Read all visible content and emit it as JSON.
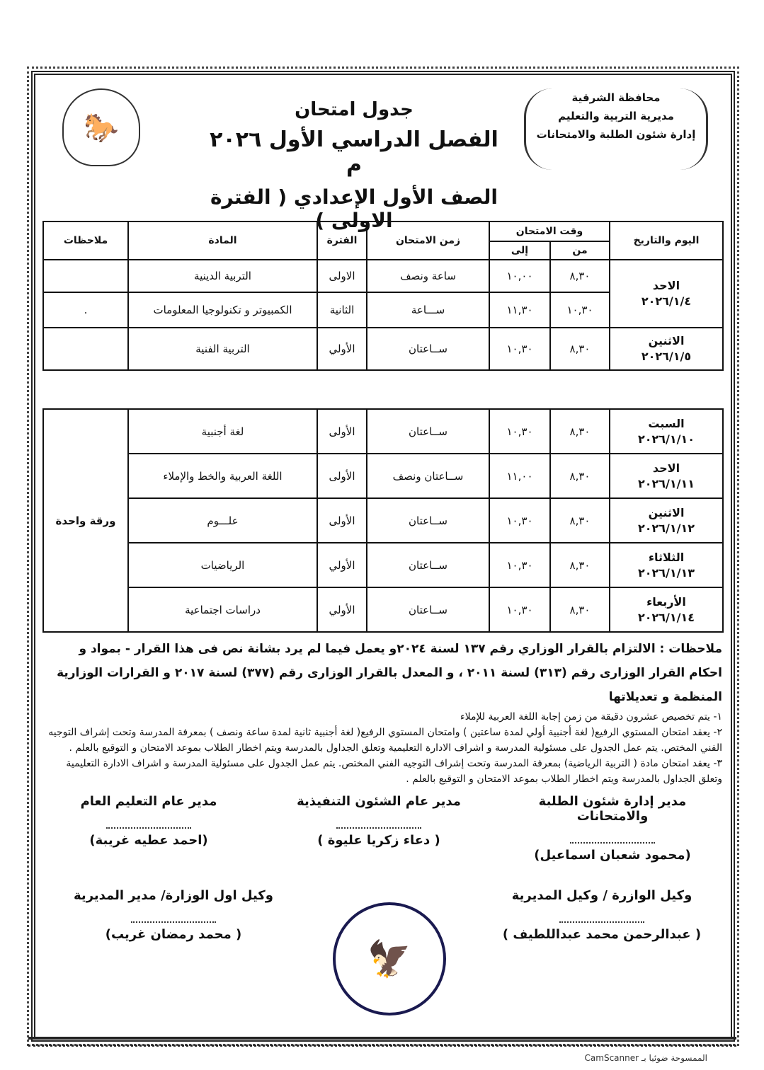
{
  "header": {
    "org_lines": [
      "محافظة الشرقية",
      "مديرية التربية والتعليم",
      "إدارة شئون الطلبة والامتحانات"
    ],
    "title": "جدول امتحان",
    "term": "الفصل الدراسي الأول ٢٠٢٦ م",
    "grade": "الصف الأول الإعدادي ( الفترة الاولى )"
  },
  "table": {
    "headers": {
      "day_date": "اليوم والتاريخ",
      "exam_time": "وقت الامتحان",
      "from": "من",
      "to": "إلى",
      "duration": "زمن الامتحان",
      "period": "الفترة",
      "subject": "المادة",
      "notes": "ملاحظات"
    },
    "group1": [
      {
        "day": "الاحد",
        "date": "٢٠٢٦/١/٤",
        "span": 2,
        "from": "٨,٣٠",
        "to": "١٠,٠٠",
        "duration": "ساعة ونصف",
        "period": "الاولى",
        "subject": "التربية الدينية",
        "note": ""
      },
      {
        "from": "١٠,٣٠",
        "to": "١١,٣٠",
        "duration": "ســـاعة",
        "period": "الثانية",
        "subject": "الكمبيوتر و تكنولوجيا المعلومات",
        "note": "."
      },
      {
        "day": "الاثنين",
        "date": "٢٠٢٦/١/٥",
        "span": 1,
        "from": "٨,٣٠",
        "to": "١٠,٣٠",
        "duration": "ســاعتان",
        "period": "الأولي",
        "subject": "التربية الفنية",
        "note": ""
      }
    ],
    "group2_note": "ورقة واحدة",
    "group2": [
      {
        "day": "السبت",
        "date": "٢٠٢٦/١/١٠",
        "from": "٨,٣٠",
        "to": "١٠,٣٠",
        "duration": "ســاعتان",
        "period": "الأولى",
        "subject": "لغة أجنبية"
      },
      {
        "day": "الاحد",
        "date": "٢٠٢٦/١/١١",
        "from": "٨,٣٠",
        "to": "١١,٠٠",
        "duration": "ســاعتان ونصف",
        "period": "الأولى",
        "subject": "اللغة العربية والخط والإملاء"
      },
      {
        "day": "الاثنين",
        "date": "٢٠٢٦/١/١٢",
        "from": "٨,٣٠",
        "to": "١٠,٣٠",
        "duration": "ســاعتان",
        "period": "الأولى",
        "subject": "علـــوم"
      },
      {
        "day": "الثلاثاء",
        "date": "٢٠٢٦/١/١٣",
        "from": "٨,٣٠",
        "to": "١٠,٣٠",
        "duration": "ســاعتان",
        "period": "الأولي",
        "subject": "الرياضيات"
      },
      {
        "day": "الأربعاء",
        "date": "٢٠٢٦/١/١٤",
        "from": "٨,٣٠",
        "to": "١٠,٣٠",
        "duration": "ســاعتان",
        "period": "الأولي",
        "subject": "دراسات اجتماعية"
      }
    ]
  },
  "notes": {
    "lead": "ملاحظات : الالتزام بالقرار الوزاري رقم ١٣٧ لسنة ٢٠٢٤و يعمل فيما لم يرد بشانة نص فى هذا القرار - بمواد و احكام القرار الوزارى رقم (٣١٣) لسنة ٢٠١١ ، و المعدل بالقرار الوزارى رقم (٣٧٧) لسنة ٢٠١٧ و القرارات الوزارية المنظمة و تعديلاتها",
    "items": [
      "١- يتم تخصيص عشرون دقيقة  من زمن إجابة اللغة العربية للإملاء",
      "٢- يعقد امتحان المستوي الرفيع( لغة أجنبية أولي لمدة ساعتين ) وامتحان المستوي الرفيع( لغة أجنبية ثانية لمدة ساعة ونصف ) بمعرفة المدرسة وتحت إشراف التوجيه الفني المختص. يتم عمل الجدول على مسئولية المدرسة و اشراف الادارة التعليمية وتعلق الجداول بالمدرسة ويتم اخطار الطلاب بموعد الامتحان و التوقيع بالعلم .",
      "٣-  يعقد امتحان مادة ( التربية الرياضية) بمعرفة المدرسة وتحت إشراف التوجيه الفني المختص. يتم عمل الجدول على مسئولية المدرسة و اشراف الادارة التعليمية وتعلق الجداول بالمدرسة ويتم اخطار الطلاب بموعد الامتحان و التوقيع بالعلم ."
    ]
  },
  "signatures": [
    {
      "title": "مدير إدارة شئون الطلبة والامتحانات",
      "name": "(محمود شعبان اسماعيل)"
    },
    {
      "title": "مدير عام الشئون التنفيذية",
      "name": "( دعاء زكريا عليوة )"
    },
    {
      "title": "مدير عام التعليم العام",
      "name": "(احمد عطيه غريبة)"
    },
    {
      "title": "وكيل الوازرة / وكيل المديرية",
      "name": "( عبدالرحمن محمد عبداللطيف )"
    },
    {
      "title": "وكيل اول الوزارة/ مدير المديرية",
      "name": "( محمد رمضان غريب)"
    }
  ],
  "watermark": "الممسوحة ضوئيا بـ CamScanner"
}
